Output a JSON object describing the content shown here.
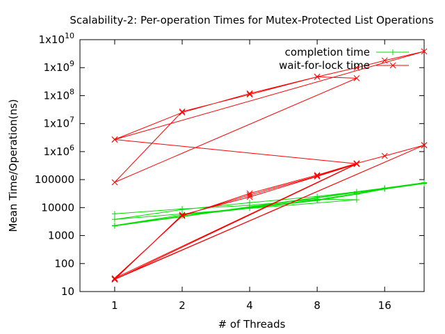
{
  "chart_data": {
    "type": "line",
    "title": "Scalability-2: Per-operation Times for Mutex-Protected List Operations",
    "xlabel": "# of Threads",
    "ylabel": "Mean Time/Operation(ns)",
    "x_scale": "log2",
    "y_scale": "log10",
    "xlim": [
      0.7,
      24
    ],
    "ylim": [
      10,
      10000000000
    ],
    "x_ticks": [
      {
        "value": 1,
        "label": "1"
      },
      {
        "value": 2,
        "label": "2"
      },
      {
        "value": 4,
        "label": "4"
      },
      {
        "value": 8,
        "label": "8"
      },
      {
        "value": 16,
        "label": "16"
      }
    ],
    "y_ticks": [
      {
        "value": 10,
        "label": "10"
      },
      {
        "value": 100,
        "label": "100"
      },
      {
        "value": 1000,
        "label": "1000"
      },
      {
        "value": 10000,
        "label": "10000"
      },
      {
        "value": 100000,
        "label": "100000"
      },
      {
        "value": 1000000,
        "label": "1x10",
        "exp": "6"
      },
      {
        "value": 10000000,
        "label": "1x10",
        "exp": "7"
      },
      {
        "value": 100000000,
        "label": "1x10",
        "exp": "8"
      },
      {
        "value": 1000000000,
        "label": "1x10",
        "exp": "9"
      },
      {
        "value": 10000000000,
        "label": "1x10",
        "exp": "10"
      }
    ],
    "legend_position": "top-right",
    "grid": false,
    "series": [
      {
        "name": "completion time",
        "color": "#00dd00",
        "marker": "plus",
        "points": [
          [
            1,
            6000
          ],
          [
            2,
            9000
          ],
          [
            4,
            12000
          ],
          [
            8,
            20000
          ],
          [
            12,
            19000
          ],
          [
            1,
            3800
          ],
          [
            2,
            8500
          ],
          [
            4,
            15000
          ],
          [
            8,
            25000
          ],
          [
            12,
            37000
          ],
          [
            16,
            50000
          ],
          [
            24,
            78000
          ],
          [
            1,
            2300
          ],
          [
            2,
            5500
          ],
          [
            4,
            10000
          ],
          [
            8,
            19000
          ],
          [
            12,
            32000
          ],
          [
            16,
            48000
          ],
          [
            24,
            75000
          ],
          [
            1,
            2200
          ],
          [
            2,
            5000
          ],
          [
            4,
            9500
          ],
          [
            8,
            18000
          ],
          [
            12,
            30000
          ],
          [
            16,
            46000
          ],
          [
            24,
            72000
          ]
        ]
      },
      {
        "name": "wait-for-lock time",
        "color": "#ff0000",
        "marker": "cross",
        "points": [
          [
            1,
            2700000
          ],
          [
            2,
            25000000
          ],
          [
            4,
            120000000
          ],
          [
            8,
            470000000
          ],
          [
            12,
            420000000
          ],
          [
            1,
            80000
          ],
          [
            2,
            27000000
          ],
          [
            4,
            110000000
          ],
          [
            8,
            470000000
          ],
          [
            12,
            1000000000
          ],
          [
            16,
            1800000000
          ],
          [
            24,
            3800000000
          ],
          [
            1,
            2700000
          ],
          [
            12,
            370000
          ],
          [
            1,
            30
          ],
          [
            2,
            5000
          ],
          [
            4,
            32000
          ],
          [
            8,
            145000
          ],
          [
            12,
            380000
          ],
          [
            16,
            700000
          ],
          [
            24,
            1700000
          ],
          [
            1,
            28
          ],
          [
            2,
            5200
          ],
          [
            4,
            28000
          ],
          [
            8,
            135000
          ],
          [
            12,
            370000
          ],
          [
            1,
            27
          ],
          [
            2,
            5500
          ],
          [
            4,
            24000
          ],
          [
            8,
            130000
          ],
          [
            12,
            360000
          ],
          [
            1,
            27
          ],
          [
            24,
            1700000
          ]
        ]
      }
    ]
  }
}
